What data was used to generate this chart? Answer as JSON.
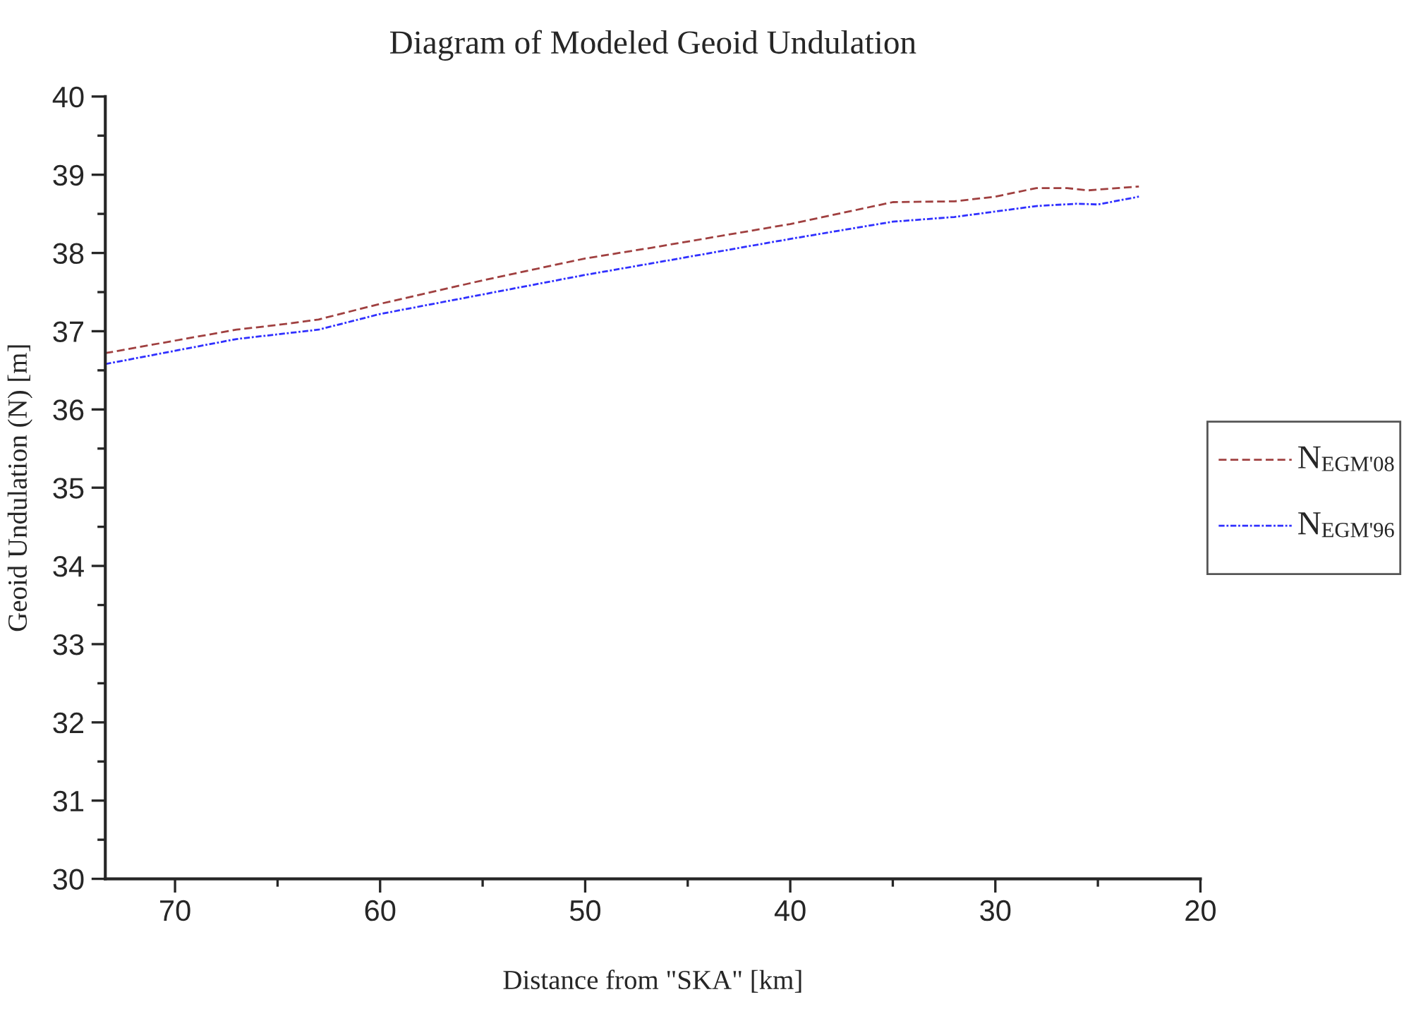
{
  "chart_data": {
    "type": "line",
    "title": "Diagram of Modeled Geoid Undulation",
    "xlabel": "Distance from \"SKA\" [km]",
    "ylabel": "Geoid Undulation (N) [m]",
    "xlim": [
      73.4,
      20
    ],
    "xticks": [
      70,
      60,
      50,
      40,
      30,
      20
    ],
    "ylim": [
      30,
      40
    ],
    "yticks": [
      30,
      31,
      32,
      33,
      34,
      35,
      36,
      37,
      38,
      39,
      40
    ],
    "legend": "right",
    "grid": false,
    "series": [
      {
        "name": "N$_{EGM'08}$",
        "color": "#a04040",
        "line_style": "dashed",
        "x": [
          73.4,
          70,
          67,
          65,
          63,
          60,
          55,
          50,
          46.7,
          40,
          35,
          32,
          30,
          28,
          26.5,
          25.5,
          23
        ],
        "values": [
          36.72,
          36.88,
          37.02,
          37.08,
          37.15,
          37.35,
          37.65,
          37.93,
          38.07,
          38.37,
          38.65,
          38.66,
          38.72,
          38.83,
          38.83,
          38.8,
          38.85
        ]
      },
      {
        "name": "N$_{EGM'96}$",
        "color": "#3030ff",
        "line_style": "dotted",
        "x": [
          73.4,
          70,
          67,
          65,
          63,
          60,
          55,
          50,
          46.7,
          40,
          35,
          32,
          30,
          28,
          26,
          25,
          23
        ],
        "values": [
          36.58,
          36.75,
          36.9,
          36.96,
          37.02,
          37.22,
          37.47,
          37.72,
          37.87,
          38.18,
          38.4,
          38.46,
          38.53,
          38.6,
          38.63,
          38.62,
          38.72
        ]
      }
    ]
  }
}
